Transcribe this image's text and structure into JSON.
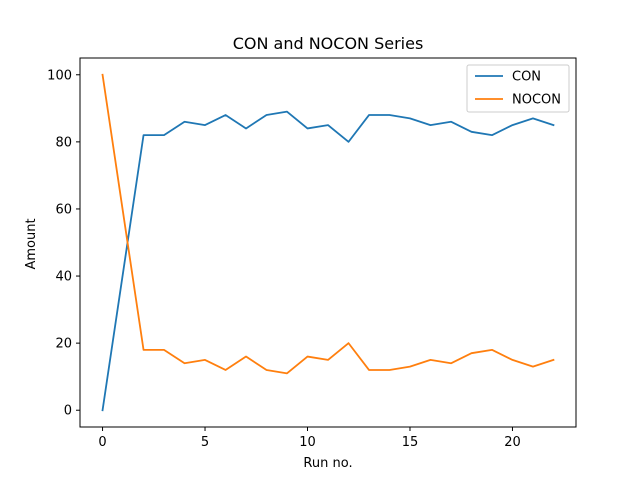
{
  "chart_data": {
    "type": "line",
    "title": "CON and NOCON Series",
    "xlabel": "Run no.",
    "ylabel": "Amount",
    "x": [
      0,
      1,
      2,
      3,
      4,
      5,
      6,
      7,
      8,
      9,
      10,
      11,
      12,
      13,
      14,
      15,
      16,
      17,
      18,
      19,
      20,
      21,
      22
    ],
    "xlim": [
      -1.1,
      23.1
    ],
    "ylim": [
      -5,
      105
    ],
    "xticks": [
      0,
      5,
      10,
      15,
      20
    ],
    "yticks": [
      0,
      20,
      40,
      60,
      80,
      100
    ],
    "grid": false,
    "legend_position": "upper-right",
    "series": [
      {
        "name": "CON",
        "color": "#1f77b4",
        "values": [
          0,
          41,
          82,
          82,
          86,
          85,
          88,
          84,
          88,
          89,
          84,
          85,
          80,
          88,
          88,
          87,
          85,
          86,
          83,
          82,
          85,
          87,
          85
        ]
      },
      {
        "name": "NOCON",
        "color": "#ff7f0e",
        "values": [
          100,
          59,
          18,
          18,
          14,
          15,
          12,
          16,
          12,
          11,
          16,
          15,
          20,
          12,
          12,
          13,
          15,
          14,
          17,
          18,
          15,
          13,
          15
        ]
      }
    ]
  }
}
